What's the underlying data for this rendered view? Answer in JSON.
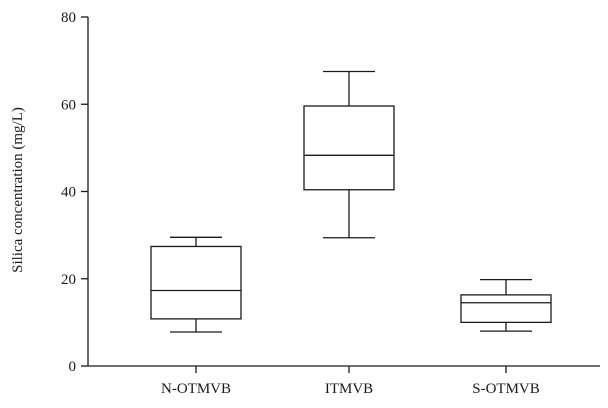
{
  "chart_data": {
    "type": "box",
    "title": "",
    "xlabel": "",
    "ylabel": "Silica concentration (mg/L)",
    "ylim": [
      0,
      80
    ],
    "yticks": [
      0,
      20,
      40,
      60,
      80
    ],
    "grid": false,
    "categories": [
      "N-OTMVB",
      "ITMVB",
      "S-OTMVB"
    ],
    "boxes": [
      {
        "category": "N-OTMVB",
        "min": 7.8,
        "q1": 10.8,
        "median": 17.3,
        "q3": 27.4,
        "max": 29.5
      },
      {
        "category": "ITMVB",
        "min": 29.4,
        "q1": 40.4,
        "median": 48.3,
        "q3": 59.6,
        "max": 67.5
      },
      {
        "category": "S-OTMVB",
        "min": 8.0,
        "q1": 10.0,
        "median": 14.5,
        "q3": 16.3,
        "max": 19.8
      }
    ]
  }
}
